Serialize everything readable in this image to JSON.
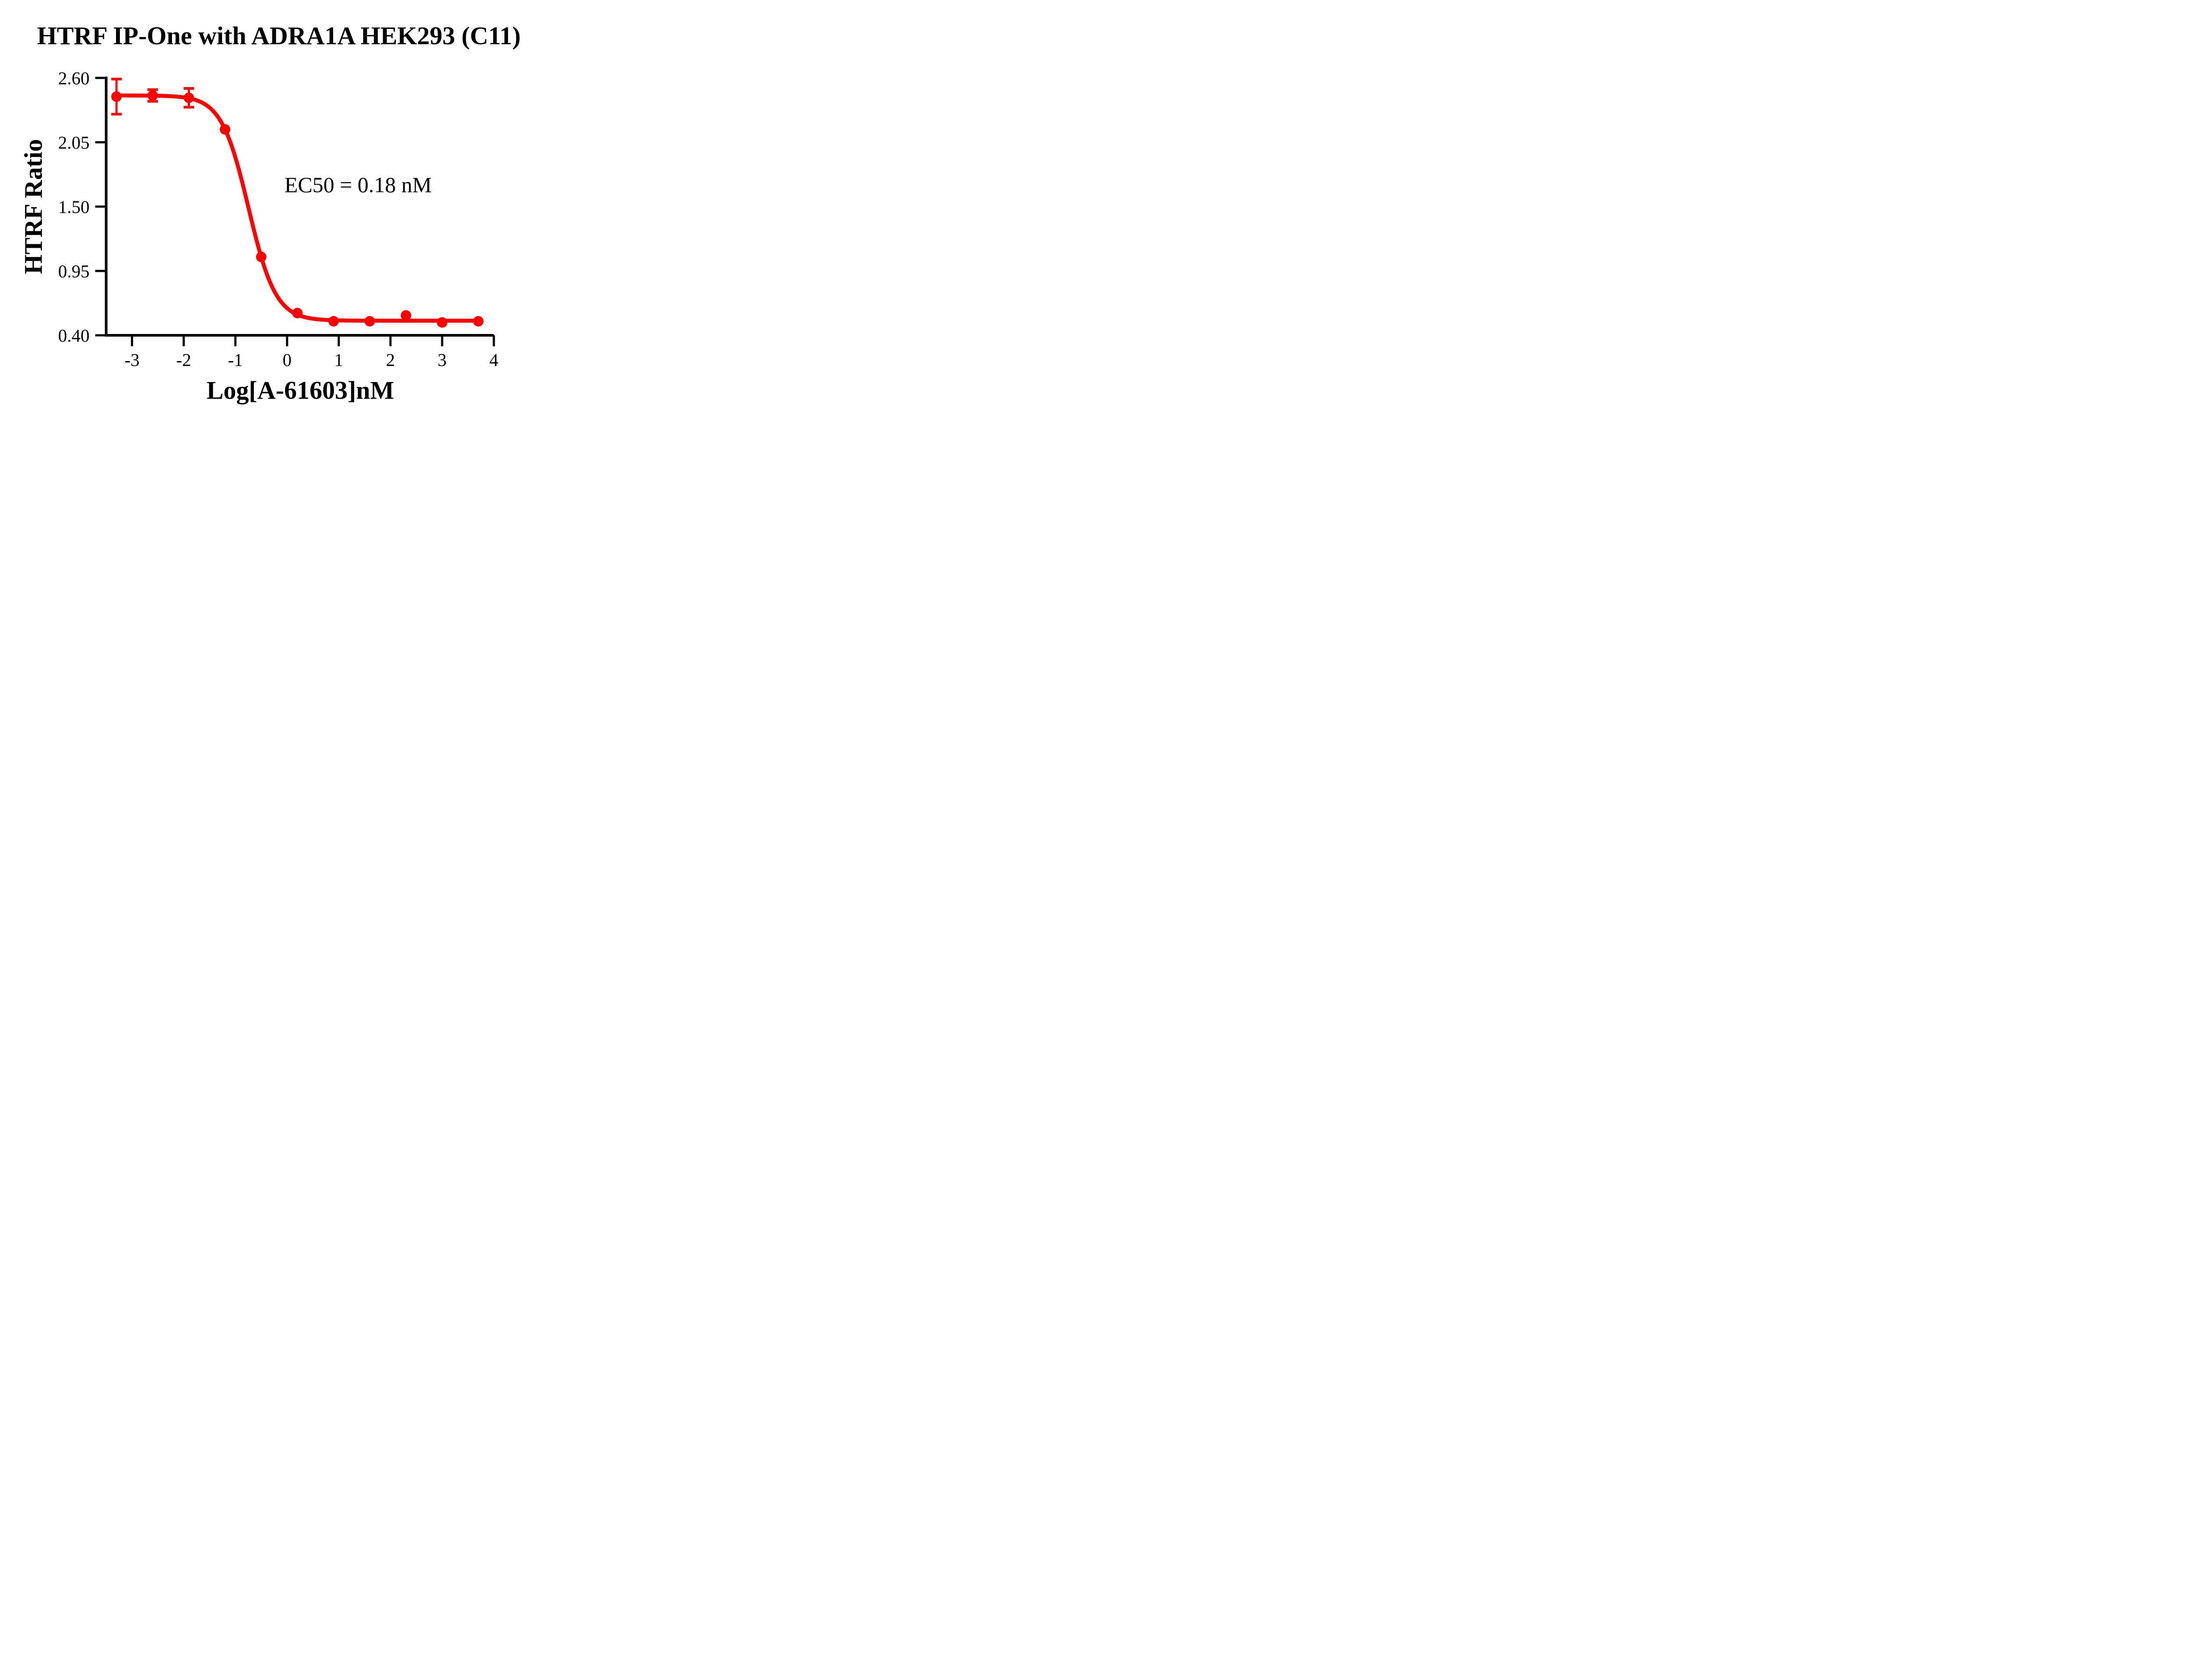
{
  "chart_data": {
    "type": "scatter",
    "subtype": "dose-response-sigmoid-fit",
    "title": "HTRF IP-One with ADRA1A HEK293 (C11)",
    "xlabel": "Log[A-61603]nM",
    "ylabel": "HTRF Ratio",
    "annotation": {
      "text": "EC50 = 0.18 nM"
    },
    "grid": false,
    "legend_position": "none",
    "background_color": "#FFFFFF",
    "axis_color": "#000000",
    "xlim": [
      -3.5,
      4
    ],
    "ylim": [
      0.4,
      2.6
    ],
    "x_ticks": [
      -3,
      -2,
      -1,
      0,
      1,
      2,
      3,
      4
    ],
    "x_tick_labels": [
      "-3",
      "-2",
      "-1",
      "0",
      "1",
      "2",
      "3",
      "4"
    ],
    "y_ticks": [
      0.4,
      0.95,
      1.5,
      2.05,
      2.6
    ],
    "y_tick_labels": [
      "0.40",
      "0.95",
      "1.50",
      "2.05",
      "2.60"
    ],
    "series": [
      {
        "name": "A-61603",
        "color": "#FF0000",
        "marker": "circle",
        "x": [
          -3.3,
          -2.6,
          -1.9,
          -1.2,
          -0.5,
          0.2,
          0.9,
          1.6,
          2.3,
          3.0,
          3.7
        ],
        "y": [
          2.44,
          2.45,
          2.43,
          2.16,
          1.07,
          0.59,
          0.52,
          0.52,
          0.57,
          0.51,
          0.52
        ],
        "y_err": [
          0.15,
          0.05,
          0.08,
          0,
          0,
          0,
          0,
          0,
          0,
          0,
          0
        ]
      }
    ],
    "fit_curve": {
      "model": "4PL",
      "top": 2.45,
      "bottom": 0.525,
      "log_ec50": -0.745,
      "hill_slope": 1.65,
      "x_start": -3.3,
      "x_end": 3.7
    }
  }
}
